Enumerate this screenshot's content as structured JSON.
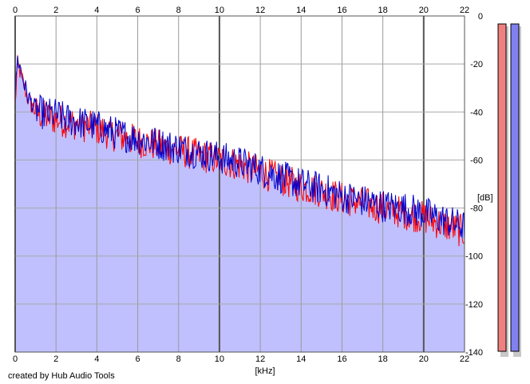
{
  "credit": "created by Hub Audio Tools",
  "chart_data": {
    "type": "area",
    "title": "",
    "xlabel": "[kHz]",
    "ylabel": "[dB]",
    "xlim": [
      0,
      22
    ],
    "ylim": [
      -140,
      0
    ],
    "x_ticks": [
      0,
      2,
      4,
      6,
      8,
      10,
      12,
      14,
      16,
      18,
      20,
      22
    ],
    "y_ticks": [
      0,
      -20,
      -40,
      -60,
      -80,
      -100,
      -120,
      -140
    ],
    "x_tick_labels": [
      "0",
      "2",
      "4",
      "6",
      "8",
      "10",
      "12",
      "14",
      "16",
      "18",
      "20",
      "22"
    ],
    "y_tick_labels": [
      "0",
      "-20",
      "-40",
      "-60",
      "-80",
      "-100",
      "-120",
      "-140"
    ],
    "grid": true,
    "x_axes": [
      "top",
      "bottom"
    ],
    "y_axis": "right",
    "fill_color": "#c0c0ff",
    "series": [
      {
        "color": "#ff0000",
        "x": [
          0,
          0.1,
          0.2,
          0.4,
          0.6,
          0.8,
          1,
          1.5,
          2,
          2.5,
          3,
          3.5,
          4,
          5,
          6,
          7,
          8,
          9,
          10,
          11,
          12,
          13,
          14,
          15,
          16,
          17,
          18,
          19,
          20,
          21,
          22
        ],
        "values": [
          -38,
          -20,
          -22,
          -28,
          -34,
          -37,
          -40,
          -42,
          -43,
          -44,
          -45,
          -46,
          -47,
          -50,
          -52,
          -54,
          -56,
          -58,
          -60,
          -62,
          -65,
          -68,
          -71,
          -73,
          -76,
          -78,
          -80,
          -82,
          -84,
          -87,
          -90
        ]
      },
      {
        "color": "#0000cc",
        "x": [
          0,
          0.1,
          0.2,
          0.4,
          0.6,
          0.8,
          1,
          1.5,
          2,
          2.5,
          3,
          3.5,
          4,
          5,
          6,
          7,
          8,
          9,
          10,
          11,
          12,
          13,
          14,
          15,
          16,
          17,
          18,
          19,
          20,
          21,
          22
        ],
        "values": [
          -35,
          -18,
          -20,
          -27,
          -33,
          -36,
          -39,
          -41,
          -41,
          -43,
          -44,
          -45,
          -46,
          -49,
          -51,
          -53,
          -55,
          -57,
          -59,
          -61,
          -64,
          -67,
          -70,
          -72,
          -75,
          -77,
          -79,
          -80,
          -82,
          -85,
          -88
        ]
      }
    ],
    "level_meters": [
      {
        "color": "#f08080",
        "value": -140
      },
      {
        "color": "#8080f0",
        "value": -140
      }
    ]
  }
}
